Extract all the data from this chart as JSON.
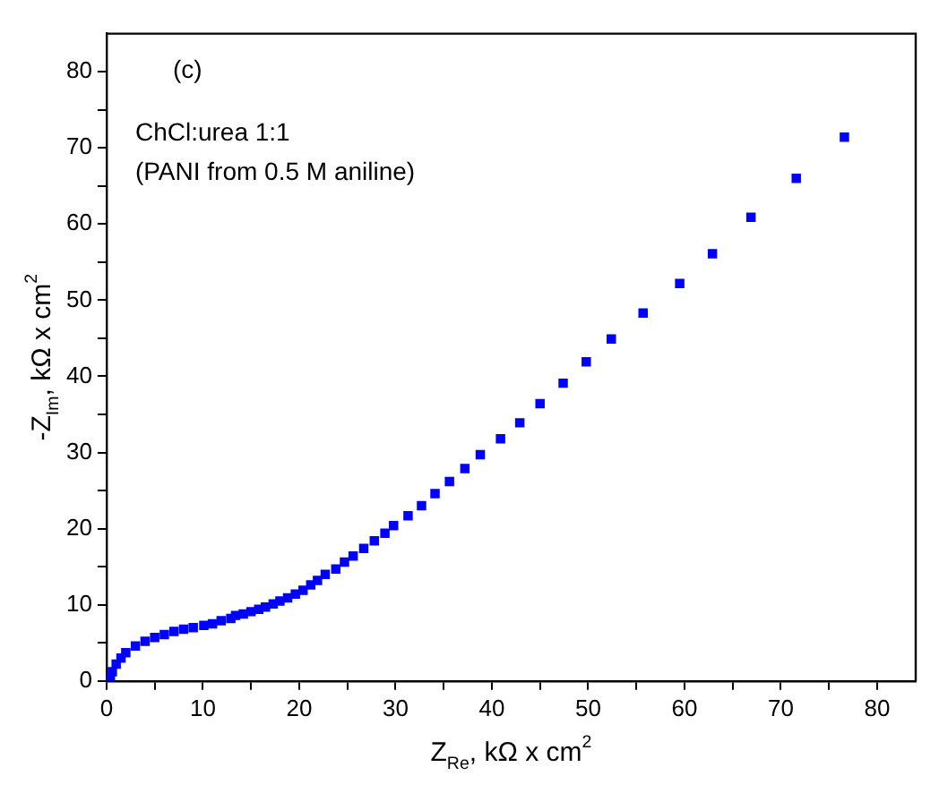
{
  "chart_data": {
    "type": "scatter",
    "xlabel": "Z$_{Re}$, kΩ x cm$^{2}$",
    "ylabel": "-Z$_{Im}$, kΩ x cm$^{2}$",
    "annotations": [
      "(c)",
      "ChCl:urea 1:1",
      "(PANI from 0.5 M aniline)"
    ],
    "marker": "square",
    "grid": false,
    "legend": false,
    "xlim": [
      0,
      84
    ],
    "ylim": [
      0,
      85
    ],
    "xticks": [
      0,
      {
        "value": 5,
        "label": null
      },
      10,
      {
        "value": 15,
        "label": null
      },
      20,
      {
        "value": 25,
        "label": null
      },
      30,
      {
        "value": 35,
        "label": null
      },
      40,
      {
        "value": 45,
        "label": null
      },
      50,
      {
        "value": 55,
        "label": null
      },
      60,
      {
        "value": 65,
        "label": null
      },
      70,
      {
        "value": 75,
        "label": null
      },
      80
    ],
    "yticks": [
      0,
      {
        "value": 5,
        "label": null
      },
      10,
      {
        "value": 15,
        "label": null
      },
      20,
      {
        "value": 25,
        "label": null
      },
      30,
      {
        "value": 35,
        "label": null
      },
      40,
      {
        "value": 45,
        "label": null
      },
      50,
      {
        "value": 55,
        "label": null
      },
      60,
      {
        "value": 65,
        "label": null
      },
      70,
      {
        "value": 75,
        "label": null
      },
      80
    ],
    "series": [
      {
        "color": "#0000ff",
        "x": [
          0.4,
          0.6,
          1,
          1.5,
          2,
          3,
          4,
          5,
          6,
          7,
          8,
          9,
          10.1,
          11.0,
          11.9,
          12.9,
          13.4,
          14.2,
          15.0,
          15.8,
          16.5,
          17.3,
          18.0,
          18.8,
          19.6,
          20.4,
          21.2,
          21.9,
          22.7,
          23.8,
          24.7,
          25.6,
          26.7,
          27.8,
          28.9,
          29.8,
          31.3,
          32.7,
          34.1,
          35.6,
          37.2,
          38.8,
          40.9,
          42.9,
          45.0,
          47.4,
          49.8,
          52.4,
          55.7,
          59.5,
          62.9,
          66.9,
          71.6,
          76.6
        ],
        "values": [
          0.3,
          1.2,
          2.2,
          3.0,
          3.7,
          4.6,
          5.2,
          5.7,
          6.1,
          6.5,
          6.8,
          7.0,
          7.3,
          7.5,
          7.9,
          8.2,
          8.6,
          8.8,
          9.1,
          9.4,
          9.7,
          10.1,
          10.5,
          10.9,
          11.4,
          11.9,
          12.6,
          13.2,
          14.0,
          14.7,
          15.6,
          16.4,
          17.4,
          18.4,
          19.4,
          20.4,
          21.7,
          23.0,
          24.6,
          26.2,
          27.9,
          29.7,
          31.8,
          33.9,
          36.4,
          39.1,
          41.9,
          44.9,
          48.3,
          52.2,
          56.1,
          60.9,
          66.0,
          71.4
        ]
      }
    ]
  }
}
